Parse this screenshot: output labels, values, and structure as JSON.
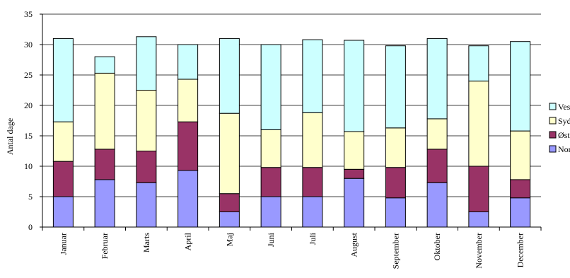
{
  "chart_data": {
    "type": "bar",
    "stacked": true,
    "ylabel": "Antal dage",
    "xlabel": "",
    "ylim": [
      0,
      35
    ],
    "yticks": [
      0,
      5,
      10,
      15,
      20,
      25,
      30,
      35
    ],
    "grid": true,
    "legend_position": "right",
    "categories": [
      "Januar",
      "Februar",
      "Marts",
      "April",
      "Maj",
      "Juni",
      "Juli",
      "August",
      "September",
      "Oktober",
      "November",
      "December"
    ],
    "series": [
      {
        "name": "Nord",
        "color": "#9999ff",
        "values": [
          5,
          7.8,
          7.3,
          9.3,
          2.5,
          5,
          5,
          8,
          4.8,
          7.3,
          2.5,
          4.8
        ]
      },
      {
        "name": "Øst",
        "color": "#993366",
        "values": [
          5.8,
          5,
          5.2,
          8,
          3,
          4.8,
          4.8,
          1.5,
          5,
          5.5,
          7.5,
          3
        ]
      },
      {
        "name": "Syd",
        "color": "#ffffcc",
        "values": [
          6.5,
          12.5,
          10,
          7,
          13.2,
          6.2,
          9,
          6.2,
          6.5,
          5,
          14,
          8
        ]
      },
      {
        "name": "Vest",
        "color": "#ccffff",
        "values": [
          13.7,
          2.7,
          8.8,
          5.7,
          12.3,
          14,
          12,
          15,
          13.5,
          13.2,
          5.8,
          14.7
        ]
      }
    ]
  }
}
